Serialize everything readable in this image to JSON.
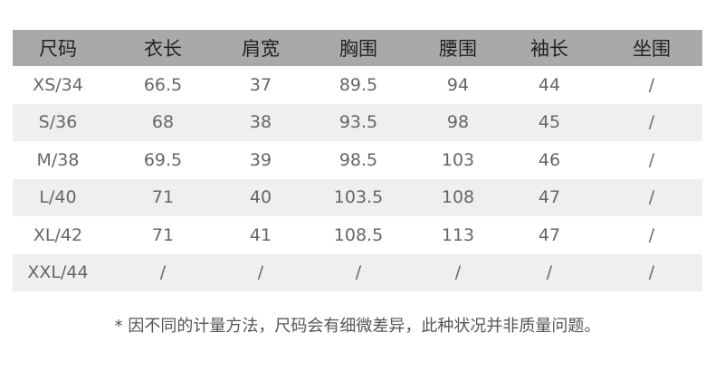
{
  "headers": [
    "尺码",
    "衣长",
    "肩宽",
    "胸围",
    "腰围",
    "袖长",
    "坐围"
  ],
  "rows": [
    [
      "XS/34",
      "66.5",
      "37",
      "89.5",
      "94",
      "44",
      "/"
    ],
    [
      "S/36",
      "68",
      "38",
      "93.5",
      "98",
      "45",
      "/"
    ],
    [
      "M/38",
      "69.5",
      "39",
      "98.5",
      "103",
      "46",
      "/"
    ],
    [
      "L/40",
      "71",
      "40",
      "103.5",
      "108",
      "47",
      "/"
    ],
    [
      "XL/42",
      "71",
      "41",
      "108.5",
      "113",
      "47",
      "/"
    ],
    [
      "XXL/44",
      "/",
      "/",
      "/",
      "/",
      "/",
      "/"
    ]
  ],
  "footnote": "* 因不同的计量方法，尺码会有细微差异，此种状况并非质量问题。",
  "colors": {
    "header_bg": "#a9a9a9",
    "stripe_bg": "#efefef"
  }
}
